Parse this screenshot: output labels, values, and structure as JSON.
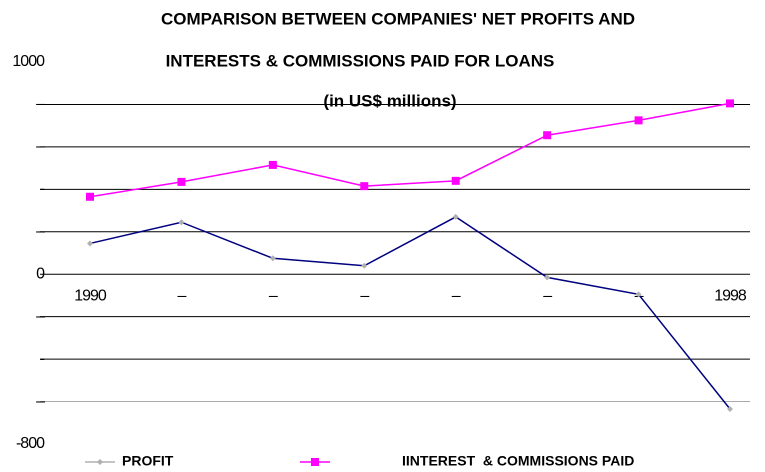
{
  "chart_data": {
    "type": "line",
    "title": "COMPARISON BETWEEN COMPANIES' NET PROFITS AND",
    "title_line2": "INTERESTS & COMMISSIONS PAID FOR LOANS",
    "subtitle": "(in US$ millions)",
    "categories": [
      "1990",
      "–",
      "–",
      "–",
      "–",
      "–",
      "–",
      "1998"
    ],
    "series": [
      {
        "name": "PROFIT",
        "color": "#000080",
        "marker_color": "#b0b0b0",
        "values": [
          145,
          245,
          75,
          40,
          270,
          -15,
          -95,
          -635
        ]
      },
      {
        "name": "IINTEREST  & COMMISSIONS PAID",
        "color": "#ff00ff",
        "marker_color": "#ff00ff",
        "values": [
          365,
          435,
          515,
          415,
          440,
          655,
          725,
          805
        ]
      }
    ],
    "ylim": [
      -800,
      1000
    ],
    "yticks": [
      -800,
      {
        "value": -600,
        "label": "–"
      },
      {
        "value": -400,
        "label": "-"
      },
      {
        "value": -200,
        "label": "–"
      },
      0,
      {
        "value": 200,
        "label": "–"
      },
      {
        "value": 400,
        "label": "-"
      },
      {
        "value": 600,
        "label": "–"
      },
      {
        "value": 800,
        "label": "–"
      },
      1000
    ],
    "grid": true,
    "legend": "bottom"
  }
}
